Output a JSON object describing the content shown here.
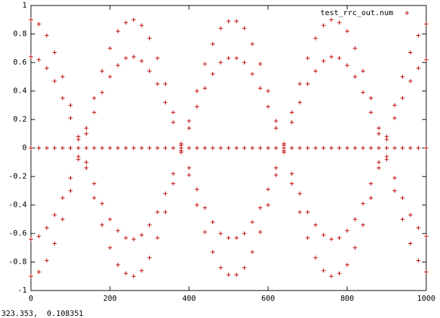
{
  "chart_data": {
    "type": "scatter",
    "x": [
      0,
      20,
      40,
      60,
      80,
      100,
      120,
      140,
      160,
      180,
      200,
      220,
      240,
      260,
      280,
      300,
      320,
      340,
      360,
      380,
      400,
      420,
      440,
      460,
      480,
      500,
      520,
      540,
      560,
      580,
      600,
      620,
      640,
      660,
      680,
      700,
      720,
      740,
      760,
      780,
      800,
      820,
      840,
      860,
      880,
      900,
      920,
      940,
      960,
      980,
      1000
    ],
    "series": [
      {
        "name": "test_rrc_out.num",
        "color": "#c00000",
        "values": [
          0.9,
          0.87,
          0.79,
          0.67,
          0.5,
          0.3,
          0.08,
          0.14,
          0.35,
          0.54,
          0.7,
          0.82,
          0.88,
          0.9,
          0.86,
          0.77,
          0.63,
          0.45,
          0.25,
          0.03,
          0.19,
          0.4,
          0.59,
          0.73,
          0.84,
          0.89,
          0.89,
          0.84,
          0.73,
          0.59,
          0.4,
          0.19,
          0.03,
          0.25,
          0.45,
          0.63,
          0.77,
          0.86,
          0.9,
          0.88,
          0.82,
          0.7,
          0.54,
          0.35,
          0.14,
          0.08,
          0.3,
          0.5,
          0.67,
          0.79,
          0.87
        ]
      },
      {
        "color": "#c00000",
        "values": [
          -0.9,
          -0.87,
          -0.79,
          -0.67,
          -0.5,
          -0.3,
          -0.08,
          -0.14,
          -0.35,
          -0.54,
          -0.7,
          -0.82,
          -0.88,
          -0.9,
          -0.86,
          -0.77,
          -0.63,
          -0.45,
          -0.25,
          -0.03,
          -0.19,
          -0.4,
          -0.59,
          -0.73,
          -0.84,
          -0.89,
          -0.89,
          -0.84,
          -0.73,
          -0.59,
          -0.4,
          -0.19,
          -0.03,
          -0.25,
          -0.45,
          -0.63,
          -0.77,
          -0.86,
          -0.9,
          -0.88,
          -0.82,
          -0.7,
          -0.54,
          -0.35,
          -0.14,
          -0.08,
          -0.3,
          -0.5,
          -0.67,
          -0.79,
          -0.87
        ]
      },
      {
        "color": "#c00000",
        "values": [
          0.64,
          0.62,
          0.56,
          0.47,
          0.35,
          0.21,
          0.06,
          0.1,
          0.25,
          0.39,
          0.5,
          0.58,
          0.63,
          0.64,
          0.61,
          0.54,
          0.45,
          0.32,
          0.18,
          0.02,
          0.14,
          0.29,
          0.42,
          0.52,
          0.6,
          0.63,
          0.63,
          0.6,
          0.52,
          0.42,
          0.29,
          0.14,
          0.02,
          0.18,
          0.32,
          0.45,
          0.54,
          0.61,
          0.64,
          0.63,
          0.58,
          0.5,
          0.39,
          0.25,
          0.1,
          0.06,
          0.21,
          0.35,
          0.47,
          0.56,
          0.62
        ]
      },
      {
        "color": "#c00000",
        "values": [
          -0.64,
          -0.62,
          -0.56,
          -0.47,
          -0.35,
          -0.21,
          -0.06,
          -0.1,
          -0.25,
          -0.39,
          -0.5,
          -0.58,
          -0.63,
          -0.64,
          -0.61,
          -0.54,
          -0.45,
          -0.32,
          -0.18,
          -0.02,
          -0.14,
          -0.29,
          -0.42,
          -0.52,
          -0.6,
          -0.63,
          -0.63,
          -0.6,
          -0.52,
          -0.42,
          -0.29,
          -0.14,
          -0.02,
          -0.18,
          -0.32,
          -0.45,
          -0.54,
          -0.61,
          -0.64,
          -0.63,
          -0.58,
          -0.5,
          -0.39,
          -0.25,
          -0.1,
          -0.06,
          -0.21,
          -0.35,
          -0.47,
          -0.56,
          -0.62
        ]
      },
      {
        "color": "#c00000",
        "values": [
          0,
          0,
          0,
          0,
          0,
          0,
          0,
          0,
          0,
          0,
          0,
          0,
          0,
          0,
          0,
          0,
          0,
          0,
          0,
          0,
          0,
          0,
          0,
          0,
          0,
          0,
          0,
          0,
          0,
          0,
          0,
          0,
          0,
          0,
          0,
          0,
          0,
          0,
          0,
          0,
          0,
          0,
          0,
          0,
          0,
          0,
          0,
          0,
          0,
          0,
          0
        ]
      }
    ],
    "xlim": [
      0,
      1000
    ],
    "xticks": [
      0,
      200,
      400,
      600,
      800,
      1000
    ],
    "ylim": [
      -1,
      1
    ],
    "yticks": [
      -1,
      -0.8,
      -0.6,
      -0.4,
      -0.2,
      0,
      0.2,
      0.4,
      0.6,
      0.8,
      1
    ],
    "legend": "top-right"
  },
  "status": "323.353,  0.108351"
}
